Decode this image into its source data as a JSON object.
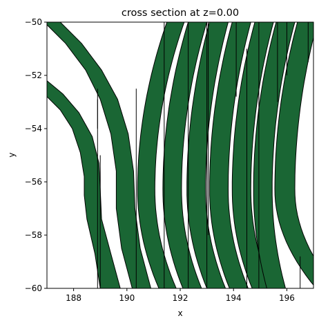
{
  "chart_data": {
    "type": "area",
    "title": "cross section at z=0.00",
    "xlabel": "x",
    "ylabel": "y",
    "xlim": [
      187,
      197
    ],
    "ylim": [
      -60,
      -50
    ],
    "x_ticks": [
      188,
      190,
      192,
      194,
      196
    ],
    "y_ticks": [
      -60,
      -58,
      -56,
      -54,
      -52,
      -50
    ],
    "x_tick_labels": [
      "188",
      "190",
      "192",
      "194",
      "196"
    ],
    "y_tick_labels": [
      "−60",
      "−58",
      "−56",
      "−54",
      "−52",
      "−50"
    ],
    "grid": false,
    "fill_color": "#1a6634",
    "edge_color": "#000000",
    "left_strips": [
      {
        "outer": [
          [
            187.0,
            -52.2
          ],
          [
            187.6,
            -52.7
          ],
          [
            188.2,
            -53.4
          ],
          [
            188.7,
            -54.3
          ],
          [
            188.95,
            -55.3
          ],
          [
            189.0,
            -56.3
          ],
          [
            189.05,
            -57.4
          ],
          [
            189.4,
            -58.7
          ],
          [
            189.75,
            -60.0
          ]
        ],
        "inner": [
          [
            187.0,
            -52.8
          ],
          [
            187.5,
            -53.3
          ],
          [
            187.95,
            -54.0
          ],
          [
            188.25,
            -54.9
          ],
          [
            188.4,
            -55.8
          ],
          [
            188.4,
            -56.5
          ],
          [
            188.5,
            -57.4
          ],
          [
            188.8,
            -58.7
          ],
          [
            189.0,
            -60.0
          ]
        ],
        "dividers": [
          [
            188.9,
            -52.9,
            188.9,
            -60.0
          ],
          [
            189.0,
            -55.0,
            189.0,
            -60.0
          ]
        ]
      },
      {
        "outer": [
          [
            187.5,
            -50.0
          ],
          [
            188.3,
            -50.8
          ],
          [
            189.05,
            -51.8
          ],
          [
            189.65,
            -52.9
          ],
          [
            190.05,
            -54.2
          ],
          [
            190.25,
            -55.6
          ],
          [
            190.3,
            -57.0
          ],
          [
            190.5,
            -58.5
          ],
          [
            190.9,
            -60.0
          ]
        ],
        "inner": [
          [
            186.9,
            -50.0
          ],
          [
            187.7,
            -50.8
          ],
          [
            188.45,
            -51.8
          ],
          [
            189.0,
            -52.9
          ],
          [
            189.4,
            -54.2
          ],
          [
            189.6,
            -55.6
          ],
          [
            189.6,
            -57.0
          ],
          [
            189.8,
            -58.5
          ],
          [
            190.2,
            -60.0
          ]
        ],
        "dividers": [
          [
            188.9,
            -52.5,
            188.9,
            -54.0
          ]
        ]
      }
    ],
    "right_strips": [
      {
        "x_top": 191.5,
        "x_min": 190.4,
        "x_bot": 191.2,
        "width": 0.65
      },
      {
        "x_top": 192.3,
        "x_min": 191.35,
        "x_bot": 192.1,
        "width": 0.7
      },
      {
        "x_top": 193.1,
        "x_min": 192.25,
        "x_bot": 193.0,
        "width": 0.7
      },
      {
        "x_top": 193.95,
        "x_min": 193.1,
        "x_bot": 193.85,
        "width": 0.7
      },
      {
        "x_top": 194.8,
        "x_min": 193.95,
        "x_bot": 194.7,
        "width": 0.7
      },
      {
        "x_top": 195.6,
        "x_min": 194.75,
        "x_bot": 195.25,
        "width": 0.7
      },
      {
        "x_top": 196.4,
        "x_min": 195.55,
        "x_bot": 197.1,
        "width": 0.75
      }
    ],
    "vertical_dividers": [
      [
        190.35,
        -52.5,
        190.35,
        -60.0
      ],
      [
        191.4,
        -50.0,
        191.4,
        -60.0
      ],
      [
        192.3,
        -50.0,
        192.3,
        -60.0
      ],
      [
        193.0,
        -50.0,
        193.0,
        -60.0
      ],
      [
        193.05,
        -50.0,
        193.05,
        -58.0
      ],
      [
        194.1,
        -50.0,
        194.1,
        -52.8
      ],
      [
        194.5,
        -51.0,
        194.5,
        -60.0
      ],
      [
        194.95,
        -50.0,
        194.95,
        -60.0
      ],
      [
        195.65,
        -50.0,
        195.65,
        -53.0
      ],
      [
        196.0,
        -50.0,
        196.0,
        -52.0
      ],
      [
        196.5,
        -58.8,
        196.5,
        -60.0
      ],
      [
        196.8,
        -50.0,
        196.8,
        -51.5
      ]
    ]
  }
}
